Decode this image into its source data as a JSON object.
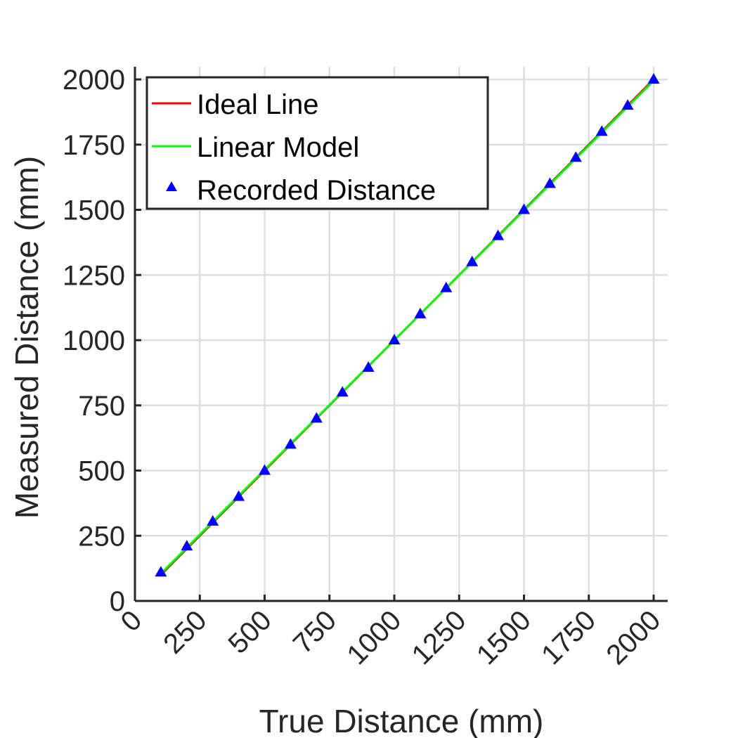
{
  "chart_data": {
    "type": "line",
    "title": "",
    "xlabel": "True Distance (mm)",
    "ylabel": "Measured Distance (mm)",
    "xlim": [
      0,
      2000
    ],
    "ylim": [
      0,
      2000
    ],
    "xticks": [
      0,
      250,
      500,
      750,
      1000,
      1250,
      1500,
      1750,
      2000
    ],
    "yticks": [
      0,
      250,
      500,
      750,
      1000,
      1250,
      1500,
      1750,
      2000
    ],
    "xtick_labels": [
      "0",
      "250",
      "500",
      "750",
      "1000",
      "1250",
      "1500",
      "1750",
      "2000"
    ],
    "ytick_labels": [
      "0",
      "250",
      "500",
      "750",
      "1000",
      "1250",
      "1500",
      "1750",
      "2000"
    ],
    "xtick_rotation": 45,
    "grid": true,
    "box": false,
    "legend": {
      "position": "top-left",
      "entries": [
        "Ideal Line",
        "Linear Model",
        "Recorded Distance"
      ]
    },
    "series": [
      {
        "name": "Ideal Line",
        "style": "line",
        "color": "#ff0000",
        "x": [
          100,
          2000
        ],
        "y": [
          100,
          2000
        ]
      },
      {
        "name": "Linear Model",
        "style": "line",
        "color": "#00ff00",
        "x": [
          100,
          2000
        ],
        "y": [
          105,
          1995
        ]
      },
      {
        "name": "Recorded Distance",
        "style": "marker",
        "marker": "triangle-up",
        "color": "#0000ff",
        "x": [
          100,
          200,
          300,
          400,
          500,
          600,
          700,
          800,
          900,
          1000,
          1100,
          1200,
          1300,
          1400,
          1500,
          1600,
          1700,
          1800,
          1900,
          2000
        ],
        "y": [
          110,
          210,
          305,
          400,
          500,
          600,
          700,
          800,
          895,
          1000,
          1100,
          1200,
          1300,
          1400,
          1500,
          1600,
          1700,
          1800,
          1900,
          2000
        ]
      }
    ]
  }
}
